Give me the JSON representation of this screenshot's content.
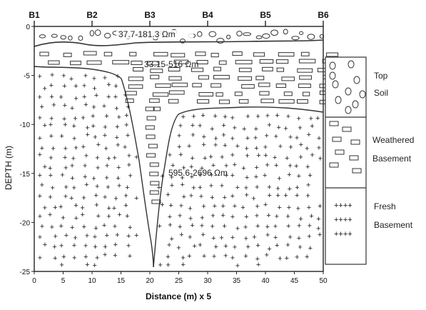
{
  "boreholes": [
    "B1",
    "B2",
    "B3",
    "B4",
    "B5",
    "B6"
  ],
  "x_axis": {
    "label": "Distance (m) x 5",
    "ticks": [
      "0",
      "5",
      "10",
      "15",
      "20",
      "25",
      "30",
      "35",
      "40",
      "45",
      "50"
    ]
  },
  "y_axis": {
    "label": "DEPTH (m)",
    "ticks": [
      "0",
      "-5",
      "-10",
      "-15",
      "-20",
      "-25"
    ]
  },
  "layers": {
    "top_soil": "37.7-181.3 Ωm",
    "weathered": "33.15-516 Ωm",
    "fresh": "595.6-2696 Ωm"
  },
  "legend": {
    "top_soil": "Top Soil",
    "weathered": "Weathered Basement",
    "fresh": "Fresh Basement",
    "fresh_symbol": "++++"
  },
  "colors": {
    "outline": "#222222",
    "background": "#ffffff",
    "text": "#111111"
  }
}
